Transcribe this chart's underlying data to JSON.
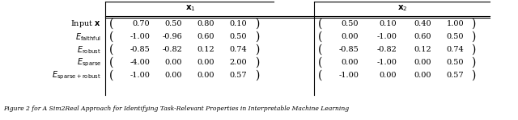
{
  "x1_header": "$\\mathbf{x}_1$",
  "x2_header": "$\\mathbf{x}_2$",
  "row_labels_plain": [
    "Input $\\mathbf{x}$",
    "$E_{\\mathrm{faithful}}$",
    "$E_{\\mathrm{robust}}$",
    "$E_{\\mathrm{sparse}}$",
    "$E_{\\mathrm{sparse+robust}}$"
  ],
  "x1_data": [
    [
      "0.70",
      "0.50",
      "0.80",
      "0.10"
    ],
    [
      "-1.00",
      "-0.96",
      "0.60",
      "0.50"
    ],
    [
      "-0.85",
      "-0.82",
      "0.12",
      "0.74"
    ],
    [
      "-4.00",
      "0.00",
      "0.00",
      "2.00"
    ],
    [
      "-1.00",
      "0.00",
      "0.00",
      "0.57"
    ]
  ],
  "x2_data": [
    [
      "0.50",
      "0.10",
      "0.40",
      "1.00"
    ],
    [
      "0.00",
      "-1.00",
      "0.60",
      "0.50"
    ],
    [
      "-0.85",
      "-0.82",
      "0.12",
      "0.74"
    ],
    [
      "0.00",
      "-1.00",
      "0.00",
      "0.50"
    ],
    [
      "-1.00",
      "0.00",
      "0.00",
      "0.57"
    ]
  ],
  "caption": "Figure 2 for A Sim2Real Approach for Identifying Task-Relevant Properties in Interpretable Machine Learning",
  "figsize": [
    6.4,
    1.49
  ],
  "dpi": 100,
  "fontsize": 7.0,
  "header_fontsize": 7.5
}
